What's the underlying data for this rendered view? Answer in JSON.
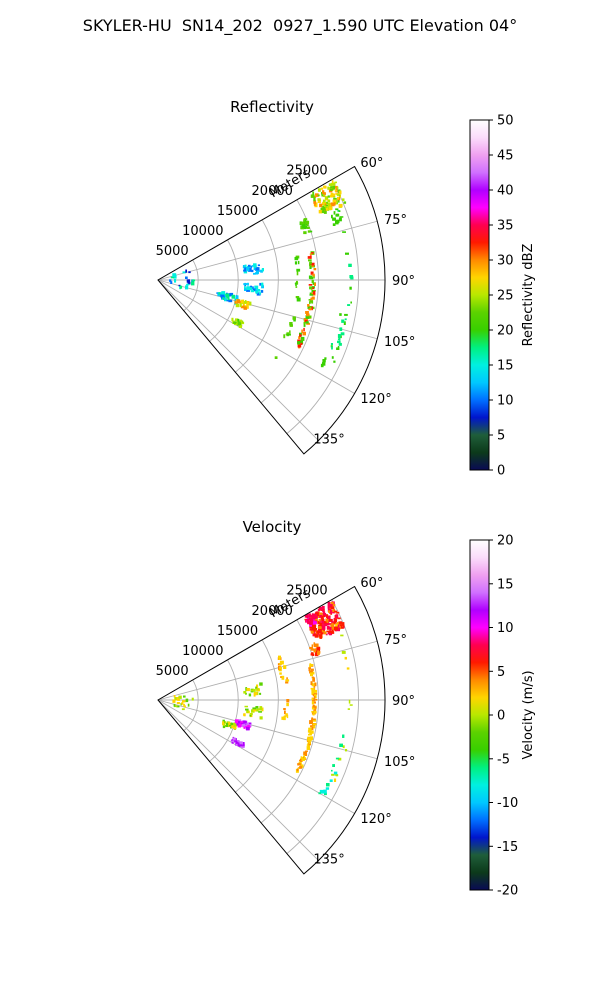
{
  "figure": {
    "title": "SKYLER-HU  SN14_202  0927_1.590 UTC Elevation 04°"
  },
  "colors": {
    "ring": "#b0b0b0",
    "frame": "#000000"
  },
  "chart_data": [
    {
      "type": "heatmap",
      "title": "Reflectivity",
      "projection": "polar sector",
      "range_label": "Meters",
      "range_ticks": [
        "5000",
        "10000",
        "15000",
        "20000",
        "25000"
      ],
      "angle_ticks": [
        "60°",
        "75°",
        "90°",
        "105°",
        "120°",
        "135°"
      ],
      "colorbar": {
        "label": "Reflectivity dBZ",
        "min": 0,
        "max": 50,
        "ticks": [
          "0",
          "5",
          "10",
          "15",
          "20",
          "25",
          "30",
          "35",
          "40",
          "45",
          "50"
        ],
        "stops": [
          "#0a0a55",
          "#0c3a1a",
          "#1f5e3a",
          "#0015cc",
          "#0070ff",
          "#00c8ff",
          "#00f0e0",
          "#00f080",
          "#38d000",
          "#5bd200",
          "#b8e800",
          "#ffd500",
          "#ff8a00",
          "#ff1a00",
          "#ff0050",
          "#ff00ff",
          "#b000ff",
          "#d070ff",
          "#f0a0f0",
          "#fbdcfb",
          "#ffffff"
        ]
      }
    },
    {
      "type": "heatmap",
      "title": "Velocity",
      "projection": "polar sector",
      "range_label": "Meters",
      "range_ticks": [
        "5000",
        "10000",
        "15000",
        "20000",
        "25000"
      ],
      "angle_ticks": [
        "60°",
        "75°",
        "90°",
        "105°",
        "120°",
        "135°"
      ],
      "colorbar": {
        "label": "Velocity (m/s)",
        "min": -20,
        "max": 20,
        "ticks": [
          "-20",
          "-15",
          "-10",
          "-5",
          "0",
          "5",
          "10",
          "15",
          "20"
        ],
        "stops": [
          "#0a0a55",
          "#0c3a1a",
          "#1f5e3a",
          "#0015cc",
          "#0070ff",
          "#00c8ff",
          "#00f0e0",
          "#00f080",
          "#38d000",
          "#5bd200",
          "#b8e800",
          "#ffd500",
          "#ff8a00",
          "#ff1a00",
          "#ff0050",
          "#ff00ff",
          "#b000ff",
          "#d070ff",
          "#f0a0f0",
          "#fbdcfb",
          "#ffffff"
        ]
      }
    }
  ]
}
